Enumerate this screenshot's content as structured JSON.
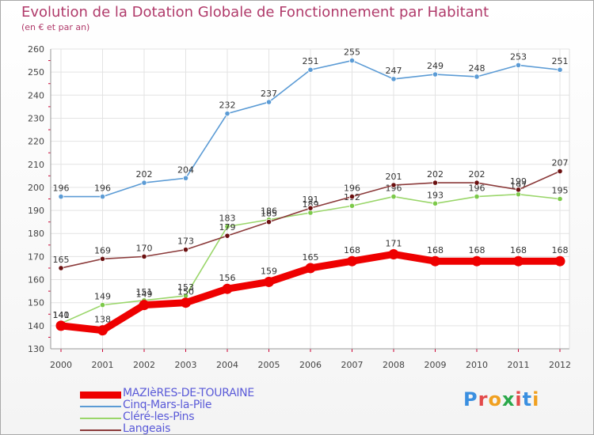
{
  "header": {
    "title": "Evolution de la Dotation Globale de Fonctionnement par Habitant",
    "subtitle": "(en € et par an)"
  },
  "brand": {
    "text": "Proxiti",
    "letter_colors": [
      "#3a8fe0",
      "#e34a4a",
      "#f0a020",
      "#2aa84a",
      "#e34a4a",
      "#3a8fe0",
      "#f0a020"
    ]
  },
  "chart_data": {
    "type": "line",
    "title": "Evolution de la Dotation Globale de Fonctionnement par Habitant",
    "subtitle": "(en € et par an)",
    "xlabel": "",
    "ylabel": "",
    "ylim": [
      130,
      260
    ],
    "yticks": [
      130,
      140,
      150,
      160,
      170,
      180,
      190,
      200,
      210,
      220,
      230,
      240,
      250,
      260
    ],
    "grid": true,
    "legend_position": "bottom-left",
    "categories": [
      "2000",
      "2001",
      "2002",
      "2003",
      "2004",
      "2005",
      "2006",
      "2007",
      "2008",
      "2009",
      "2010",
      "2011",
      "2012"
    ],
    "series": [
      {
        "name": "MAZIèRES-DE-TOURAINE",
        "color": "#ee0000",
        "marker_color": "#ee0000",
        "emphasis": true,
        "values": [
          140,
          138,
          149,
          150,
          156,
          159,
          165,
          168,
          171,
          168,
          168,
          168,
          168
        ]
      },
      {
        "name": "Cinq-Mars-la-Pile",
        "color": "#5b9bd5",
        "marker_color": "#5b9bd5",
        "emphasis": false,
        "values": [
          196,
          196,
          202,
          204,
          232,
          237,
          251,
          255,
          247,
          249,
          248,
          253,
          251
        ]
      },
      {
        "name": "Cléré-les-Pins",
        "color": "#9ad66a",
        "marker_color": "#7cc94a",
        "emphasis": false,
        "values": [
          141,
          149,
          151,
          153,
          183,
          186,
          189,
          192,
          196,
          193,
          196,
          197,
          195
        ]
      },
      {
        "name": "Langeais",
        "color": "#8b3a3a",
        "marker_color": "#6b1010",
        "emphasis": false,
        "values": [
          165,
          169,
          170,
          173,
          179,
          185,
          191,
          196,
          201,
          202,
          202,
          199,
          207
        ]
      }
    ]
  }
}
